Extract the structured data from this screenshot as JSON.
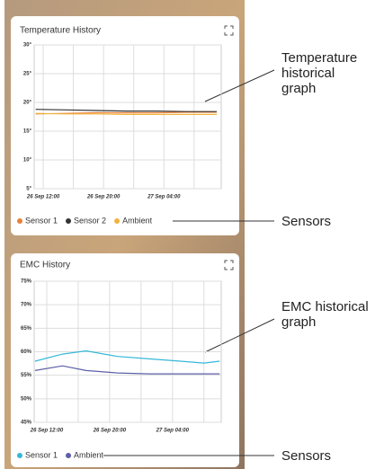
{
  "chart_data": [
    {
      "type": "line",
      "title": "Temperature History",
      "x": [
        -1,
        3,
        7,
        11,
        15,
        19,
        23
      ],
      "series": [
        {
          "name": "Sensor 1",
          "color": "#e8823a",
          "values": [
            18.0,
            18.1,
            18.2,
            18.2,
            18.2,
            18.3,
            18.3
          ]
        },
        {
          "name": "Sensor 2",
          "color": "#333333",
          "values": [
            18.8,
            18.7,
            18.6,
            18.5,
            18.5,
            18.4,
            18.4
          ]
        },
        {
          "name": "Ambient",
          "color": "#f2b33d",
          "values": [
            18.1,
            18.0,
            18.0,
            17.9,
            17.9,
            17.9,
            17.9
          ]
        }
      ],
      "xlim": [
        -1.2,
        23.6
      ],
      "xticks": [
        {
          "value": 0,
          "label": "26 Sep 12:00"
        },
        {
          "value": 8,
          "label": "26 Sep 20:00"
        },
        {
          "value": 16,
          "label": "27 Sep 04:00"
        }
      ],
      "ylim": [
        5,
        30
      ],
      "yticks": [
        {
          "value": 5,
          "label": "5°"
        },
        {
          "value": 10,
          "label": "10°"
        },
        {
          "value": 15,
          "label": "15°"
        },
        {
          "value": 20,
          "label": "20°"
        },
        {
          "value": 25,
          "label": "25°"
        },
        {
          "value": 30,
          "label": "30°"
        }
      ],
      "grid": true
    },
    {
      "type": "line",
      "title": "EMC History",
      "x": [
        -1.5,
        2,
        5,
        9,
        13,
        17,
        20,
        22
      ],
      "series": [
        {
          "name": "Sensor 1",
          "color": "#36b8d8",
          "values": [
            58.0,
            59.5,
            60.2,
            59.0,
            58.5,
            58.0,
            57.6,
            58.0
          ]
        },
        {
          "name": "Ambient",
          "color": "#5d5fa8",
          "values": [
            56.0,
            57.0,
            56.0,
            55.5,
            55.3,
            55.3,
            55.3,
            55.3
          ]
        }
      ],
      "xlim": [
        -1.6,
        22.2
      ],
      "xticks": [
        {
          "value": 0,
          "label": "26 Sep 12:00"
        },
        {
          "value": 8,
          "label": "26 Sep 20:00"
        },
        {
          "value": 16,
          "label": "27 Sep 04:00"
        }
      ],
      "ylim": [
        45,
        75
      ],
      "yticks": [
        {
          "value": 45,
          "label": "45%"
        },
        {
          "value": 50,
          "label": "50%"
        },
        {
          "value": 55,
          "label": "55%"
        },
        {
          "value": 60,
          "label": "60%"
        },
        {
          "value": 65,
          "label": "65%"
        },
        {
          "value": 70,
          "label": "70%"
        },
        {
          "value": 75,
          "label": "75%"
        }
      ],
      "grid": true
    }
  ],
  "callouts": [
    "Temperature historical graph",
    "Sensors",
    "EMC historical graph",
    "Sensors"
  ]
}
